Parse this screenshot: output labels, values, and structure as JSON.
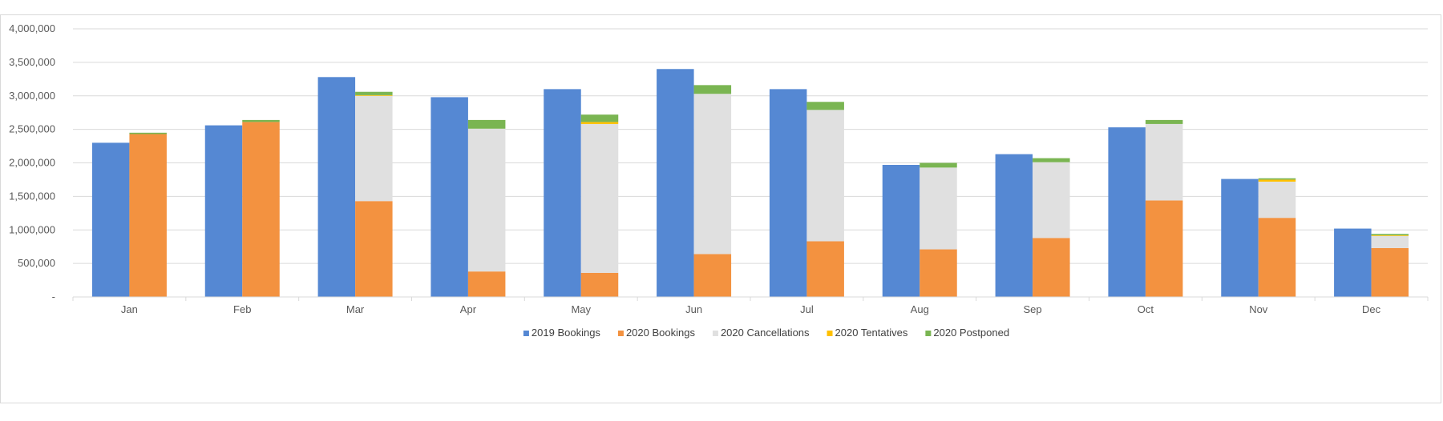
{
  "chart_data": {
    "type": "bar",
    "categories": [
      "Jan",
      "Feb",
      "Mar",
      "Apr",
      "May",
      "Jun",
      "Jul",
      "Aug",
      "Sep",
      "Oct",
      "Nov",
      "Dec"
    ],
    "ylim": [
      0,
      4000000
    ],
    "yticks": [
      0,
      500000,
      1000000,
      1500000,
      2000000,
      2500000,
      3000000,
      3500000,
      4000000
    ],
    "ytick_labels": [
      "-",
      "500,000",
      "1,000,000",
      "1,500,000",
      "2,000,000",
      "2,500,000",
      "3,000,000",
      "3,500,000",
      "4,000,000"
    ],
    "grid": true,
    "legend_position": "bottom",
    "bar_2019": {
      "name": "2019 Bookings",
      "color": "#5588d3",
      "values": [
        2300000,
        2560000,
        3280000,
        2980000,
        3100000,
        3400000,
        3100000,
        1970000,
        2130000,
        2530000,
        1760000,
        1020000
      ]
    },
    "stack_2020": [
      {
        "name": "2020 Bookings",
        "color": "#f39240",
        "values": [
          2430000,
          2610000,
          1430000,
          380000,
          360000,
          640000,
          830000,
          710000,
          880000,
          1440000,
          1180000,
          730000
        ]
      },
      {
        "name": "2020 Cancellations",
        "color": "#e0e0e0",
        "values": [
          0,
          0,
          1570000,
          2130000,
          2220000,
          2390000,
          1960000,
          1220000,
          1130000,
          1140000,
          540000,
          180000
        ]
      },
      {
        "name": "2020 Tentatives",
        "color": "#ffc000",
        "values": [
          0,
          0,
          10000,
          0,
          30000,
          0,
          0,
          0,
          0,
          0,
          30000,
          10000
        ]
      },
      {
        "name": "2020 Postponed",
        "color": "#7ab552",
        "values": [
          20000,
          30000,
          50000,
          130000,
          110000,
          130000,
          120000,
          70000,
          60000,
          60000,
          20000,
          20000
        ]
      }
    ]
  }
}
